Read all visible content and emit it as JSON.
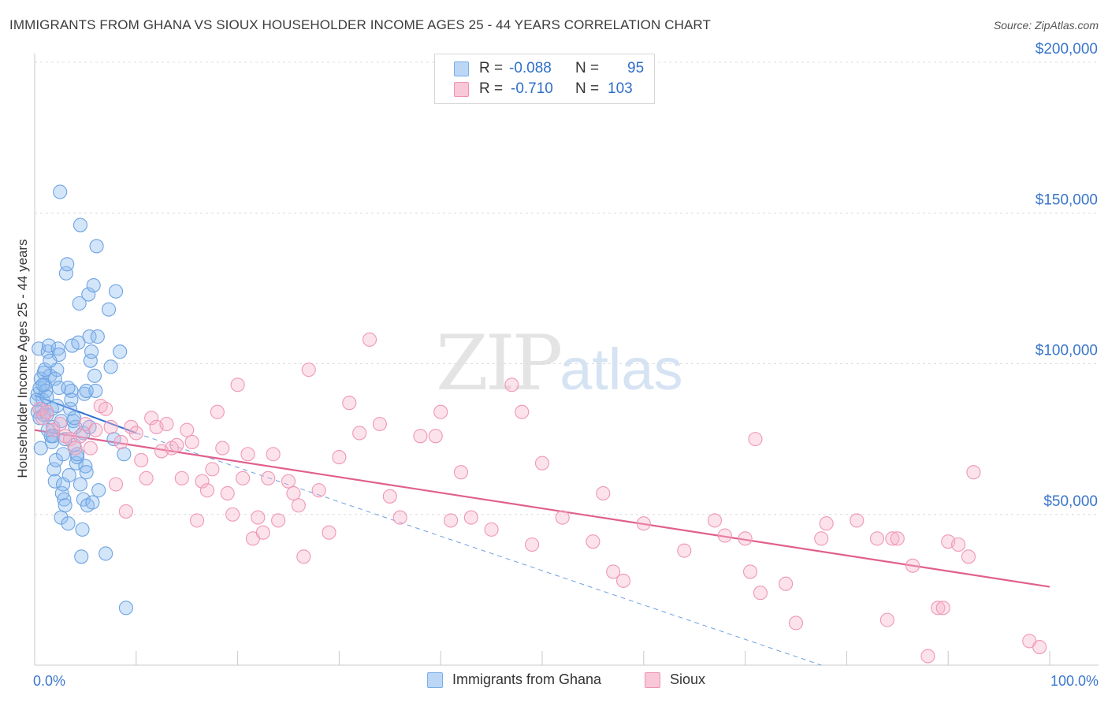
{
  "header": {
    "title": "IMMIGRANTS FROM GHANA VS SIOUX HOUSEHOLDER INCOME AGES 25 - 44 YEARS CORRELATION CHART",
    "source": "Source: ZipAtlas.com"
  },
  "watermark": {
    "zip": "ZIP",
    "atlas": "atlas"
  },
  "legend": {
    "series": [
      {
        "name": "Immigrants from Ghana",
        "r_label": "R =",
        "r_value": "-0.088",
        "n_label": "N =",
        "n_value": "95",
        "color": "#7aaee8",
        "fill": "#bcd6f5"
      },
      {
        "name": "Sioux",
        "r_label": "R =",
        "r_value": "-0.710",
        "n_label": "N =",
        "n_value": "103",
        "color": "#ee92b0",
        "fill": "#f8c8d8"
      }
    ]
  },
  "chart_data": {
    "type": "scatter",
    "title": "IMMIGRANTS FROM GHANA VS SIOUX HOUSEHOLDER INCOME AGES 25 - 44 YEARS CORRELATION CHART",
    "xlabel": "",
    "ylabel": "Householder Income Ages 25 - 44 years",
    "xlim": [
      0,
      100
    ],
    "ylim": [
      0,
      210000
    ],
    "x_tick_labels": [
      "0.0%",
      "100.0%"
    ],
    "y_ticks": [
      50000,
      100000,
      150000,
      200000
    ],
    "y_tick_labels": [
      "$50,000",
      "$100,000",
      "$150,000",
      "$200,000"
    ],
    "grid": "horizontal dashed",
    "legend_position": "top-center",
    "series": [
      {
        "name": "Immigrants from Ghana",
        "color": "#7aaee8",
        "points": [
          [
            0.3,
            90000
          ],
          [
            0.5,
            92000
          ],
          [
            0.6,
            95000
          ],
          [
            0.8,
            88000
          ],
          [
            0.4,
            105000
          ],
          [
            0.7,
            85000
          ],
          [
            0.9,
            97000
          ],
          [
            1.0,
            93000
          ],
          [
            1.1,
            91000
          ],
          [
            1.2,
            83000
          ],
          [
            1.3,
            104000
          ],
          [
            1.4,
            106000
          ],
          [
            1.5,
            96000
          ],
          [
            1.6,
            76000
          ],
          [
            1.7,
            74000
          ],
          [
            1.8,
            79000
          ],
          [
            1.9,
            65000
          ],
          [
            2.0,
            61000
          ],
          [
            2.1,
            68000
          ],
          [
            2.2,
            98000
          ],
          [
            2.3,
            105000
          ],
          [
            2.4,
            103000
          ],
          [
            2.5,
            157000
          ],
          [
            2.6,
            49000
          ],
          [
            2.7,
            57000
          ],
          [
            2.8,
            60000
          ],
          [
            2.9,
            55000
          ],
          [
            3.0,
            53000
          ],
          [
            3.1,
            130000
          ],
          [
            3.2,
            133000
          ],
          [
            3.3,
            47000
          ],
          [
            3.4,
            63000
          ],
          [
            3.5,
            85000
          ],
          [
            3.6,
            91000
          ],
          [
            3.7,
            106000
          ],
          [
            3.8,
            81000
          ],
          [
            3.9,
            73000
          ],
          [
            4.0,
            79000
          ],
          [
            4.1,
            67000
          ],
          [
            4.2,
            69000
          ],
          [
            4.3,
            107000
          ],
          [
            4.4,
            120000
          ],
          [
            4.5,
            146000
          ],
          [
            4.6,
            36000
          ],
          [
            4.7,
            45000
          ],
          [
            4.8,
            55000
          ],
          [
            4.9,
            90000
          ],
          [
            5.0,
            66000
          ],
          [
            5.1,
            64000
          ],
          [
            5.2,
            53000
          ],
          [
            5.3,
            123000
          ],
          [
            5.4,
            109000
          ],
          [
            5.5,
            101000
          ],
          [
            5.6,
            104000
          ],
          [
            5.7,
            54000
          ],
          [
            5.8,
            126000
          ],
          [
            5.9,
            96000
          ],
          [
            6.0,
            91000
          ],
          [
            6.1,
            139000
          ],
          [
            6.2,
            109000
          ],
          [
            6.3,
            58000
          ],
          [
            7.0,
            37000
          ],
          [
            7.3,
            118000
          ],
          [
            7.5,
            99000
          ],
          [
            7.8,
            75000
          ],
          [
            8.0,
            124000
          ],
          [
            8.4,
            104000
          ],
          [
            8.8,
            70000
          ],
          [
            9.0,
            19000
          ],
          [
            0.2,
            88000
          ],
          [
            0.3,
            84000
          ],
          [
            0.6,
            72000
          ],
          [
            0.9,
            83000
          ],
          [
            1.0,
            98000
          ],
          [
            1.2,
            89000
          ],
          [
            1.3,
            78000
          ],
          [
            1.5,
            101000
          ],
          [
            1.7,
            85000
          ],
          [
            1.8,
            76000
          ],
          [
            2.0,
            95000
          ],
          [
            2.2,
            86000
          ],
          [
            2.4,
            92000
          ],
          [
            2.6,
            81000
          ],
          [
            2.8,
            70000
          ],
          [
            3.0,
            75000
          ],
          [
            3.3,
            92000
          ],
          [
            3.6,
            88000
          ],
          [
            3.9,
            82000
          ],
          [
            4.2,
            70000
          ],
          [
            4.5,
            60000
          ],
          [
            4.8,
            77000
          ],
          [
            5.1,
            91000
          ],
          [
            5.4,
            79000
          ],
          [
            0.5,
            82000
          ],
          [
            0.8,
            93000
          ]
        ],
        "trendline": {
          "x": [
            0.0,
            10.0
          ],
          "y": [
            89500,
            77000
          ],
          "extended": {
            "x": [
              10.0,
              77.5
            ],
            "y": [
              77000,
              0
            ]
          }
        }
      },
      {
        "name": "Sioux",
        "color": "#ee92b0",
        "points": [
          [
            0.5,
            85000
          ],
          [
            0.8,
            82000
          ],
          [
            1.2,
            84000
          ],
          [
            1.8,
            78000
          ],
          [
            2.5,
            80000
          ],
          [
            3.0,
            76000
          ],
          [
            3.5,
            75000
          ],
          [
            4.0,
            72000
          ],
          [
            4.5,
            76000
          ],
          [
            5.0,
            80000
          ],
          [
            5.5,
            72000
          ],
          [
            6.0,
            78000
          ],
          [
            6.5,
            86000
          ],
          [
            7.0,
            85000
          ],
          [
            7.5,
            79000
          ],
          [
            8.0,
            60000
          ],
          [
            8.5,
            74000
          ],
          [
            9.0,
            51000
          ],
          [
            9.5,
            79000
          ],
          [
            10.0,
            77000
          ],
          [
            10.5,
            68000
          ],
          [
            11.0,
            62000
          ],
          [
            11.5,
            82000
          ],
          [
            12.0,
            79000
          ],
          [
            12.5,
            71000
          ],
          [
            13.0,
            80000
          ],
          [
            13.5,
            72000
          ],
          [
            14.0,
            73000
          ],
          [
            14.5,
            62000
          ],
          [
            15.0,
            78000
          ],
          [
            15.5,
            74000
          ],
          [
            16.0,
            48000
          ],
          [
            16.5,
            61000
          ],
          [
            17.0,
            58000
          ],
          [
            17.5,
            65000
          ],
          [
            18.0,
            84000
          ],
          [
            18.5,
            72000
          ],
          [
            19.0,
            57000
          ],
          [
            19.5,
            50000
          ],
          [
            20.0,
            93000
          ],
          [
            20.5,
            62000
          ],
          [
            21.0,
            70000
          ],
          [
            21.5,
            42000
          ],
          [
            22.0,
            49000
          ],
          [
            22.5,
            44000
          ],
          [
            23.0,
            62000
          ],
          [
            23.5,
            70000
          ],
          [
            24.0,
            48000
          ],
          [
            25.0,
            61000
          ],
          [
            25.5,
            57000
          ],
          [
            26.0,
            53000
          ],
          [
            26.5,
            36000
          ],
          [
            27.0,
            98000
          ],
          [
            28.0,
            58000
          ],
          [
            29.0,
            44000
          ],
          [
            30.0,
            69000
          ],
          [
            31.0,
            87000
          ],
          [
            32.0,
            77000
          ],
          [
            33.0,
            108000
          ],
          [
            34.0,
            80000
          ],
          [
            35.0,
            56000
          ],
          [
            36.0,
            49000
          ],
          [
            38.0,
            76000
          ],
          [
            39.5,
            76000
          ],
          [
            40.0,
            84000
          ],
          [
            41.0,
            48000
          ],
          [
            42.0,
            64000
          ],
          [
            43.0,
            49000
          ],
          [
            45.0,
            45000
          ],
          [
            47.0,
            93000
          ],
          [
            48.0,
            84000
          ],
          [
            49.0,
            40000
          ],
          [
            50.0,
            67000
          ],
          [
            52.0,
            49000
          ],
          [
            55.0,
            41000
          ],
          [
            56.0,
            57000
          ],
          [
            57.0,
            31000
          ],
          [
            58.0,
            28000
          ],
          [
            60.0,
            47000
          ],
          [
            64.0,
            38000
          ],
          [
            67.0,
            48000
          ],
          [
            68.0,
            43000
          ],
          [
            70.0,
            42000
          ],
          [
            70.5,
            31000
          ],
          [
            71.0,
            75000
          ],
          [
            71.5,
            24000
          ],
          [
            74.0,
            27000
          ],
          [
            75.0,
            14000
          ],
          [
            77.5,
            42000
          ],
          [
            78.0,
            47000
          ],
          [
            81.0,
            48000
          ],
          [
            83.0,
            42000
          ],
          [
            84.5,
            42000
          ],
          [
            84.0,
            15000
          ],
          [
            85.0,
            42000
          ],
          [
            86.5,
            33000
          ],
          [
            88.0,
            3000
          ],
          [
            89.0,
            19000
          ],
          [
            89.5,
            19000
          ],
          [
            90.0,
            41000
          ],
          [
            91.0,
            40000
          ],
          [
            92.0,
            36000
          ],
          [
            92.5,
            64000
          ],
          [
            98.0,
            8000
          ],
          [
            99.0,
            6000
          ]
        ],
        "trendline": {
          "x": [
            0.0,
            100.0
          ],
          "y": [
            78000,
            26000
          ]
        }
      }
    ]
  }
}
